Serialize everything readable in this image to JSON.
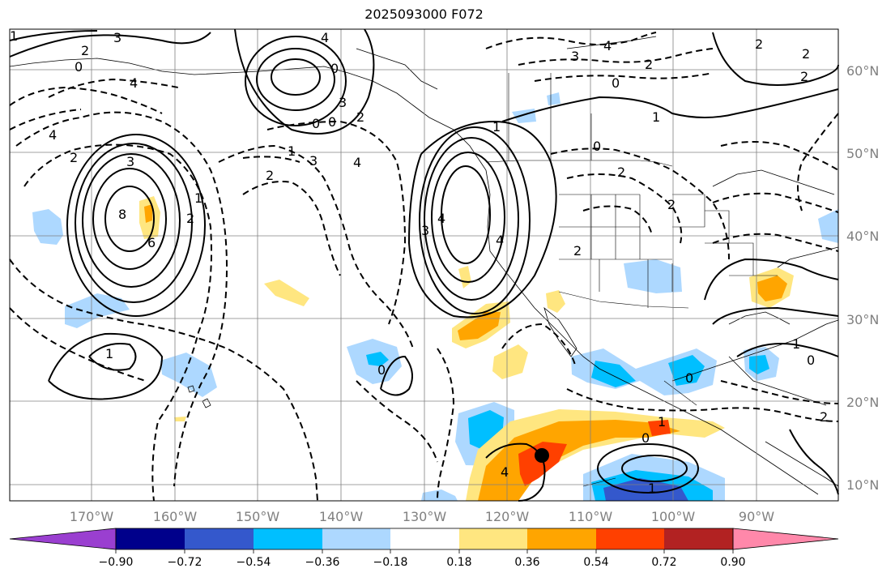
{
  "title": "2025093000 F072",
  "map": {
    "lat_labels": [
      "60°N",
      "50°N",
      "40°N",
      "30°N",
      "20°N",
      "10°N"
    ],
    "lon_labels": [
      "170°W",
      "160°W",
      "150°W",
      "140°W",
      "130°W",
      "120°W",
      "110°W",
      "100°W",
      "90°W"
    ],
    "contour_labels": [
      "1",
      "3",
      "2",
      "0",
      "4",
      "4",
      "0",
      "3",
      "2",
      "4",
      "2",
      "0",
      "0",
      "1",
      "4",
      "3",
      "8",
      "3",
      "6",
      "2",
      "1",
      "2",
      "3",
      "4",
      "0",
      "1",
      "0",
      "1",
      "2",
      "3",
      "4",
      "2",
      "4",
      "3",
      "1",
      "0",
      "2",
      "4",
      "2",
      "2",
      "2",
      "2",
      "2",
      "1",
      "0",
      "0",
      "0",
      "1",
      "1"
    ]
  },
  "colorbar": {
    "tick_labels": [
      "−0.90",
      "−0.72",
      "−0.54",
      "−0.36",
      "−0.18",
      "0.18",
      "0.36",
      "0.54",
      "0.72",
      "0.90"
    ],
    "colors": [
      "#9a3fd0",
      "#00008b",
      "#3458cc",
      "#00bfff",
      "#add8ff",
      "#ffffff",
      "#ffe680",
      "#ffa500",
      "#ff4000",
      "#b22222",
      "#ff88aa"
    ]
  }
}
